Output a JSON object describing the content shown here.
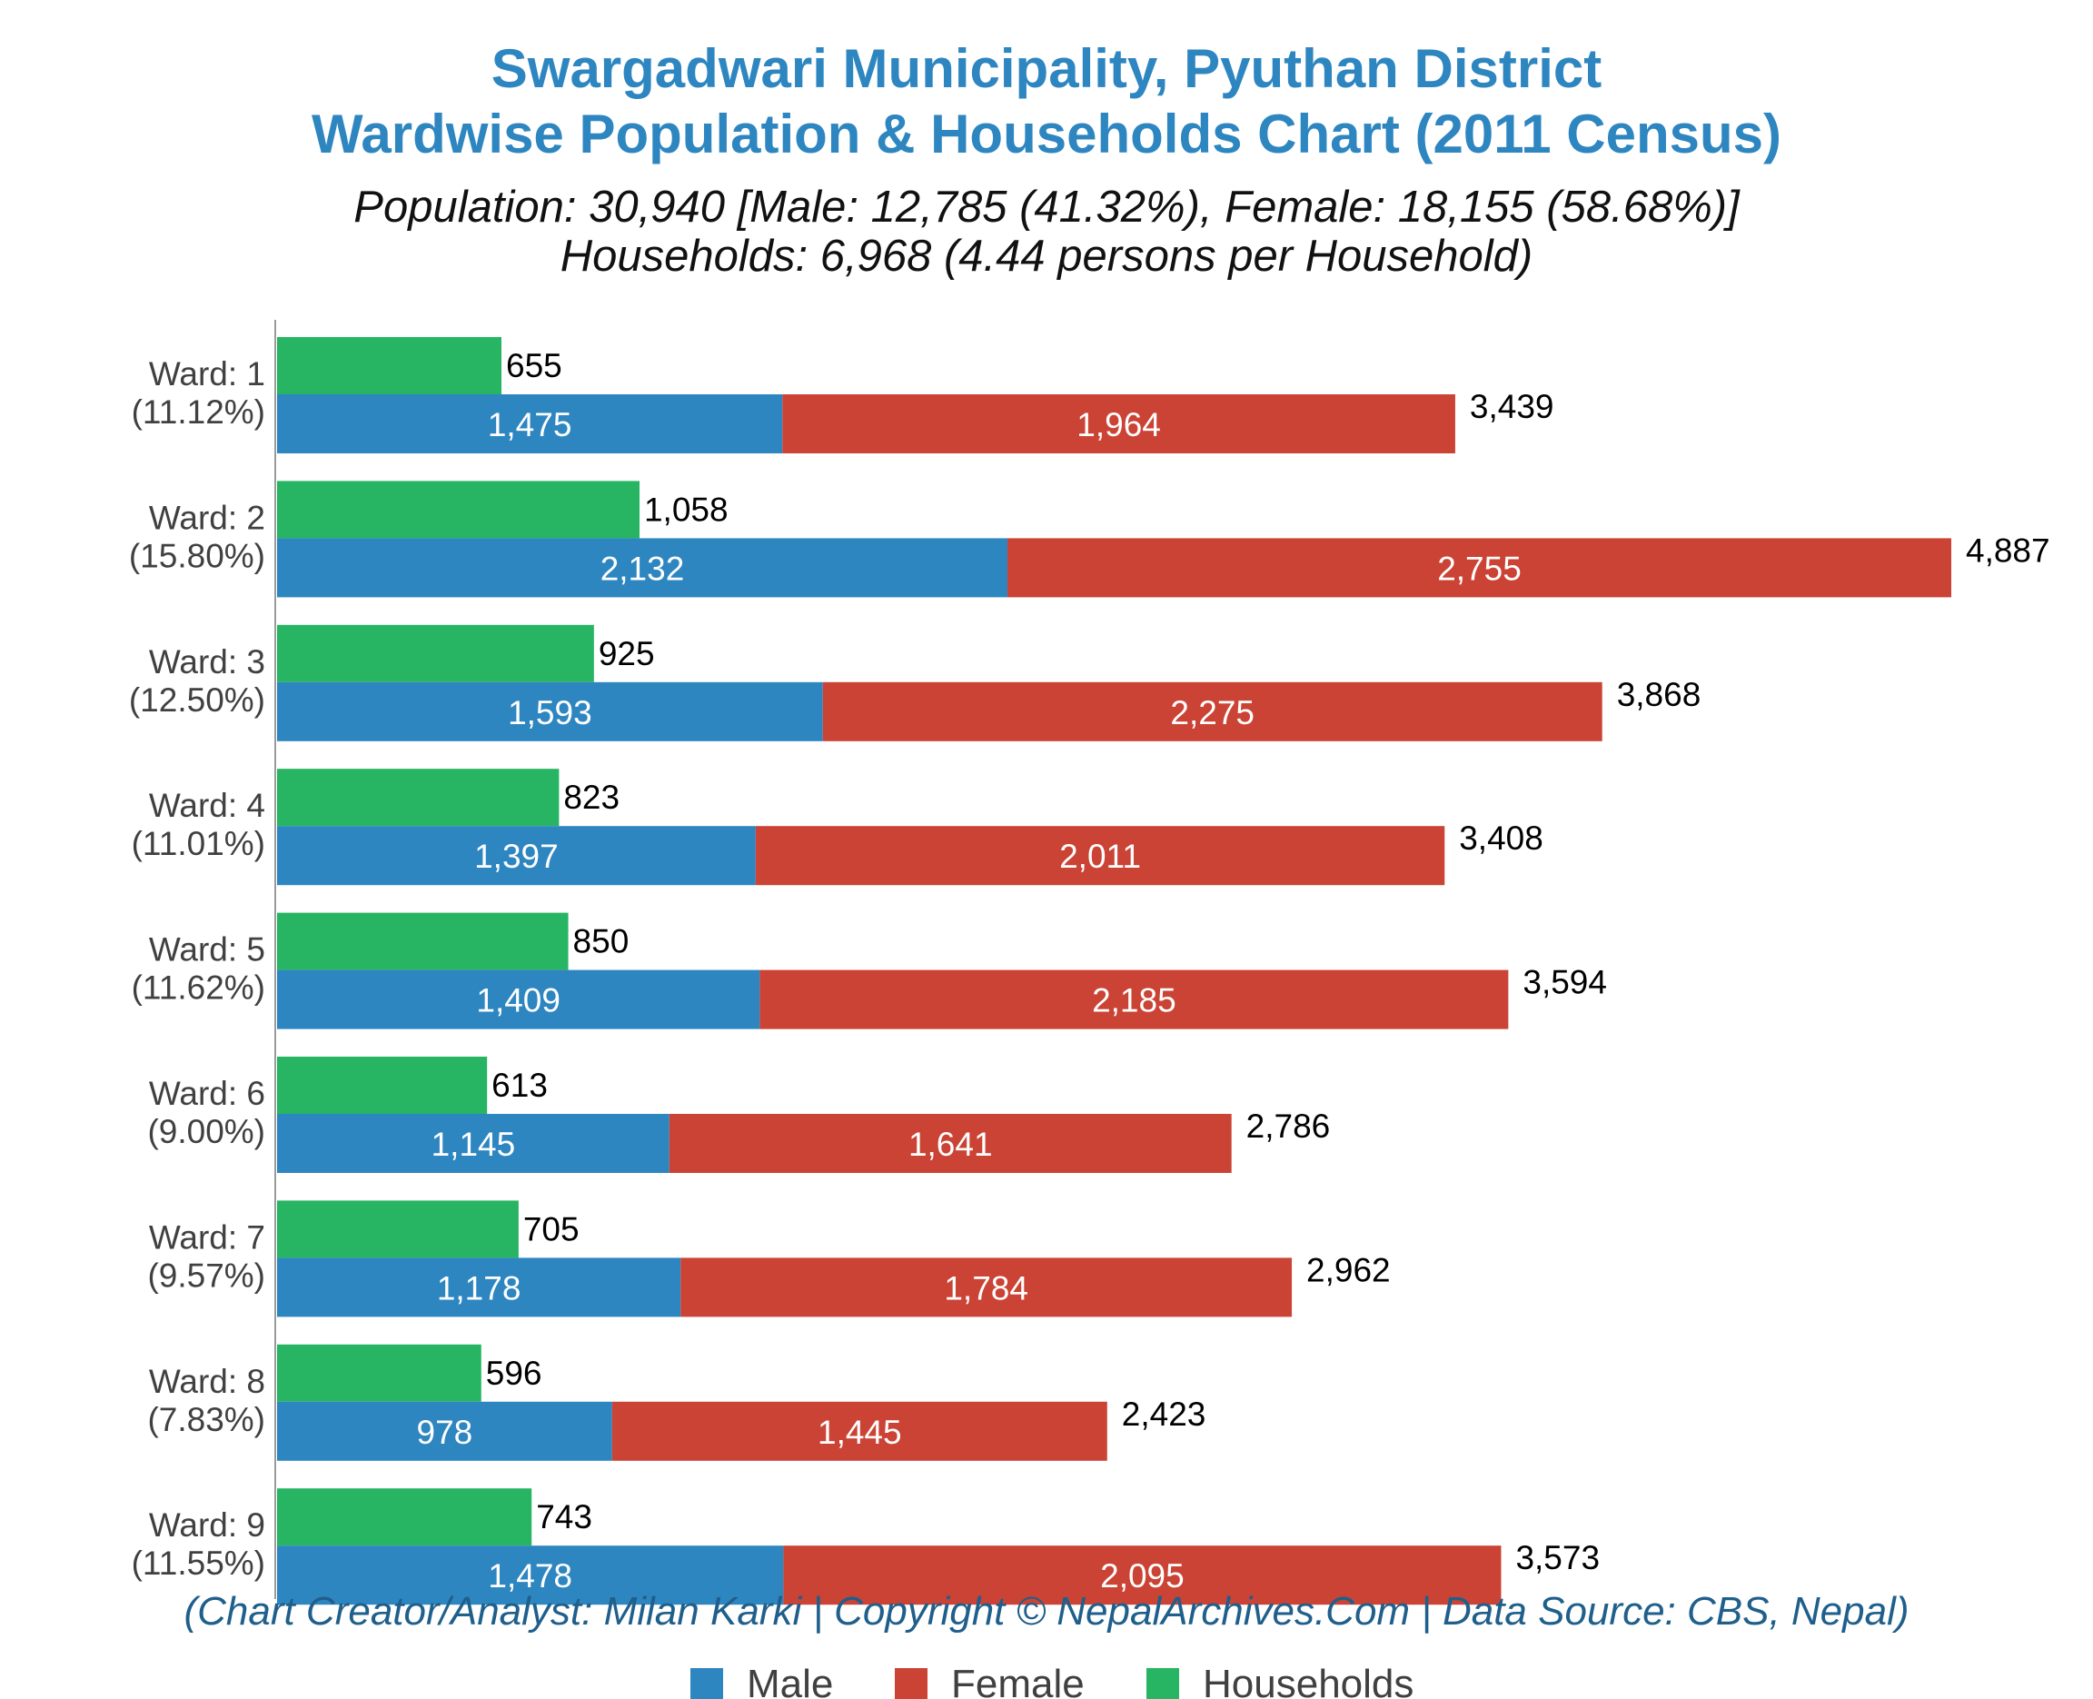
{
  "title_line1": "Swargadwari Municipality, Pyuthan District",
  "title_line2": "Wardwise Population & Households Chart (2011 Census)",
  "subtitle_line1": "Population: 30,940 [Male: 12,785 (41.32%), Female: 18,155 (58.68%)]",
  "subtitle_line2": "Households: 6,968 (4.44 persons per Household)",
  "credit": "(Chart Creator/Analyst: Milan Karki | Copyright © NepalArchives.Com | Data Source: CBS, Nepal)",
  "legend": {
    "male": "Male",
    "female": "Female",
    "households": "Households"
  },
  "colors": {
    "title": "#2e86c1",
    "male": "#2e86c1",
    "female": "#cb4335",
    "households": "#27b463",
    "credit": "#1f5f8b"
  },
  "chart_data": {
    "type": "bar",
    "orientation": "horizontal",
    "stacked_series": [
      "Male",
      "Female"
    ],
    "categories": [
      "Ward: 1",
      "Ward: 2",
      "Ward: 3",
      "Ward: 4",
      "Ward: 5",
      "Ward: 6",
      "Ward: 7",
      "Ward: 8",
      "Ward: 9"
    ],
    "category_percents": [
      "(11.12%)",
      "(15.80%)",
      "(12.50%)",
      "(11.01%)",
      "(11.62%)",
      "(9.00%)",
      "(9.57%)",
      "(7.83%)",
      "(11.55%)"
    ],
    "series": [
      {
        "name": "Male",
        "values": [
          1475,
          2132,
          1593,
          1397,
          1409,
          1145,
          1178,
          978,
          1478
        ],
        "labels": [
          "1,475",
          "2,132",
          "1,593",
          "1,397",
          "1,409",
          "1,145",
          "1,178",
          "978",
          "1,478"
        ]
      },
      {
        "name": "Female",
        "values": [
          1964,
          2755,
          2275,
          2011,
          2185,
          1641,
          1784,
          1445,
          2095
        ],
        "labels": [
          "1,964",
          "2,755",
          "2,275",
          "2,011",
          "2,185",
          "1,641",
          "1,784",
          "1,445",
          "2,095"
        ]
      },
      {
        "name": "Households",
        "values": [
          655,
          1058,
          925,
          823,
          850,
          613,
          705,
          596,
          743
        ],
        "labels": [
          "655",
          "1,058",
          "925",
          "823",
          "850",
          "613",
          "705",
          "596",
          "743"
        ]
      }
    ],
    "totals": [
      3439,
      4887,
      3868,
      3408,
      3594,
      2786,
      2962,
      2423,
      3573
    ],
    "total_labels": [
      "3,439",
      "4,887",
      "3,868",
      "3,408",
      "3,594",
      "2,786",
      "2,962",
      "2,423",
      "3,573"
    ],
    "xlim": [
      0,
      4887
    ],
    "grid": false,
    "legend_position": "bottom"
  }
}
